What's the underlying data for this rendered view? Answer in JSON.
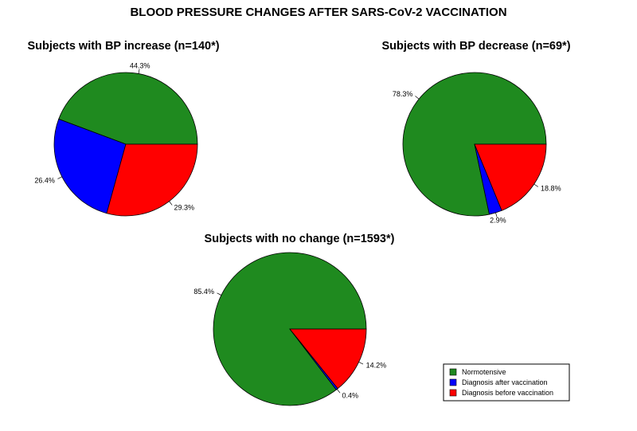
{
  "page": {
    "title": "BLOOD PRESSURE CHANGES AFTER SARS-CoV-2 VACCINATION"
  },
  "legend": {
    "items": [
      {
        "label": "Normotensive",
        "color": "#1f8a1f"
      },
      {
        "label": "Diagnosis after vaccination",
        "color": "#0000ff"
      },
      {
        "label": "Diagnosis before vaccination",
        "color": "#ff0000"
      }
    ]
  },
  "chart_data": [
    {
      "type": "pie",
      "title": "Subjects with BP increase (n=140*)",
      "categories": [
        "Normotensive",
        "Diagnosis after vaccination",
        "Diagnosis before vaccination"
      ],
      "values": [
        44.3,
        26.4,
        29.3
      ],
      "labels": [
        "44.3%",
        "26.4%",
        "29.3%"
      ]
    },
    {
      "type": "pie",
      "title": "Subjects with BP decrease (n=69*)",
      "categories": [
        "Normotensive",
        "Diagnosis after vaccination",
        "Diagnosis before vaccination"
      ],
      "values": [
        78.3,
        2.9,
        18.8
      ],
      "labels": [
        "78.3%",
        "2.9%",
        "18.8%"
      ]
    },
    {
      "type": "pie",
      "title": "Subjects with no change (n=1593*)",
      "categories": [
        "Normotensive",
        "Diagnosis after vaccination",
        "Diagnosis before vaccination"
      ],
      "values": [
        85.4,
        0.4,
        14.2
      ],
      "labels": [
        "85.4%",
        "0.4%",
        "14.2%"
      ]
    }
  ]
}
